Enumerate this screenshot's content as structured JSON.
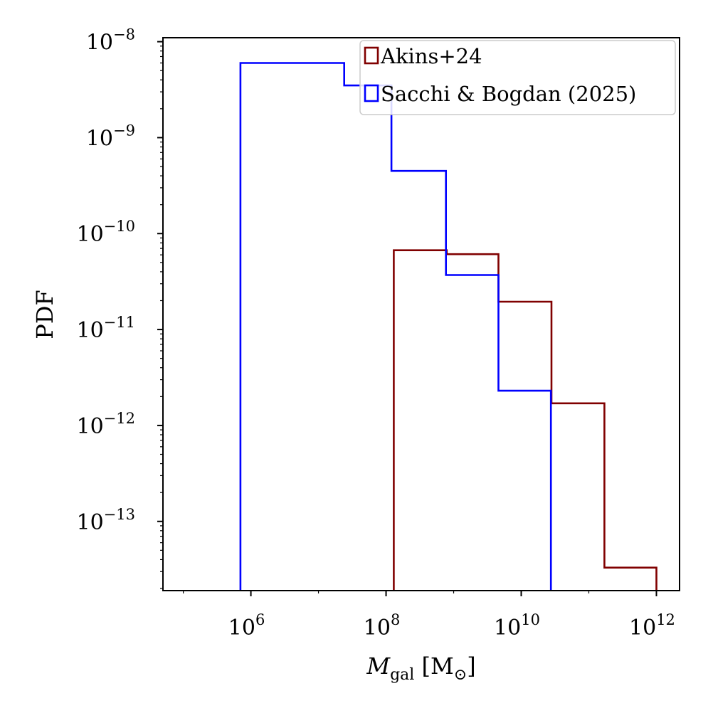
{
  "chart_data": {
    "type": "histogram",
    "title": "",
    "xlabel": "M_gal [M_⊙]",
    "ylabel": "PDF",
    "xscale": "log",
    "yscale": "log",
    "xlim": [
      50000.0,
      2200000000000.0
    ],
    "ylim": [
      1.9e-14,
      1.1e-08
    ],
    "x_ticks": [
      {
        "value": 1000000.0,
        "base": "10",
        "exp": "6"
      },
      {
        "value": 100000000.0,
        "base": "10",
        "exp": "8"
      },
      {
        "value": 10000000000.0,
        "base": "10",
        "exp": "10"
      },
      {
        "value": 1000000000000.0,
        "base": "10",
        "exp": "12"
      }
    ],
    "y_ticks": [
      {
        "value": 1e-08,
        "base": "10",
        "exp": "−8"
      },
      {
        "value": 1e-09,
        "base": "10",
        "exp": "−9"
      },
      {
        "value": 1e-10,
        "base": "10",
        "exp": "−10"
      },
      {
        "value": 1e-11,
        "base": "10",
        "exp": "−11"
      },
      {
        "value": 1e-12,
        "base": "10",
        "exp": "−12"
      },
      {
        "value": 1e-13,
        "base": "10",
        "exp": "−13"
      }
    ],
    "legend_position": "upper right",
    "series": [
      {
        "name": "Akins+24",
        "color": "#800000",
        "bin_edges": [
          130000000.0,
          790000000.0,
          4600000000.0,
          28000000000.0,
          170000000000.0,
          1000000000000.0
        ],
        "values": [
          6.7e-11,
          6.1e-11,
          1.95e-11,
          1.7e-12,
          3.3e-14
        ]
      },
      {
        "name": "Sacchi & Bogdan (2025)",
        "color": "#0000ff",
        "bin_edges": [
          700000.0,
          24000000.0,
          120000000.0,
          770000000.0,
          4600000000.0,
          27500000000.0
        ],
        "values": [
          6e-09,
          3.5e-09,
          4.5e-10,
          3.7e-11,
          2.3e-12
        ]
      }
    ]
  }
}
